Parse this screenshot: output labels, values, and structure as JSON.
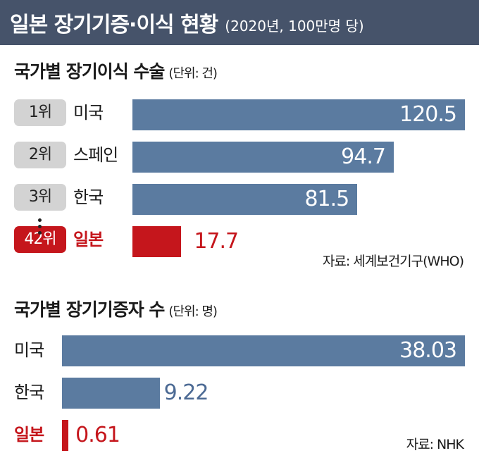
{
  "header": {
    "title": "일본 장기기증·이식 현황",
    "subtitle": "(2020년, 100만명 당)"
  },
  "chart_data": [
    {
      "type": "bar",
      "orientation": "horizontal",
      "title": "국가별 장기이식 수술",
      "unit_label": "(단위: 건)",
      "ranks": [
        "1위",
        "2위",
        "3위",
        "42위"
      ],
      "categories": [
        "미국",
        "스페인",
        "한국",
        "일본"
      ],
      "values": [
        120.5,
        94.7,
        81.5,
        17.7
      ],
      "value_labels": [
        "120.5",
        "94.7",
        "81.5",
        "17.7"
      ],
      "highlight": "일본",
      "source": "자료: 세계보건기구(WHO)",
      "colors": {
        "bar": "#5b7ba0",
        "highlight": "#c5161c",
        "badge": "#d3d3d3"
      }
    },
    {
      "type": "bar",
      "orientation": "horizontal",
      "title": "국가별 장기기증자 수",
      "unit_label": "(단위: 명)",
      "categories": [
        "미국",
        "한국",
        "일본"
      ],
      "values": [
        38.03,
        9.22,
        0.61
      ],
      "value_labels": [
        "38.03",
        "9.22",
        "0.61"
      ],
      "highlight": "일본",
      "source": "자료: NHK",
      "colors": {
        "bar": "#5b7ba0",
        "highlight": "#c5161c"
      }
    }
  ]
}
